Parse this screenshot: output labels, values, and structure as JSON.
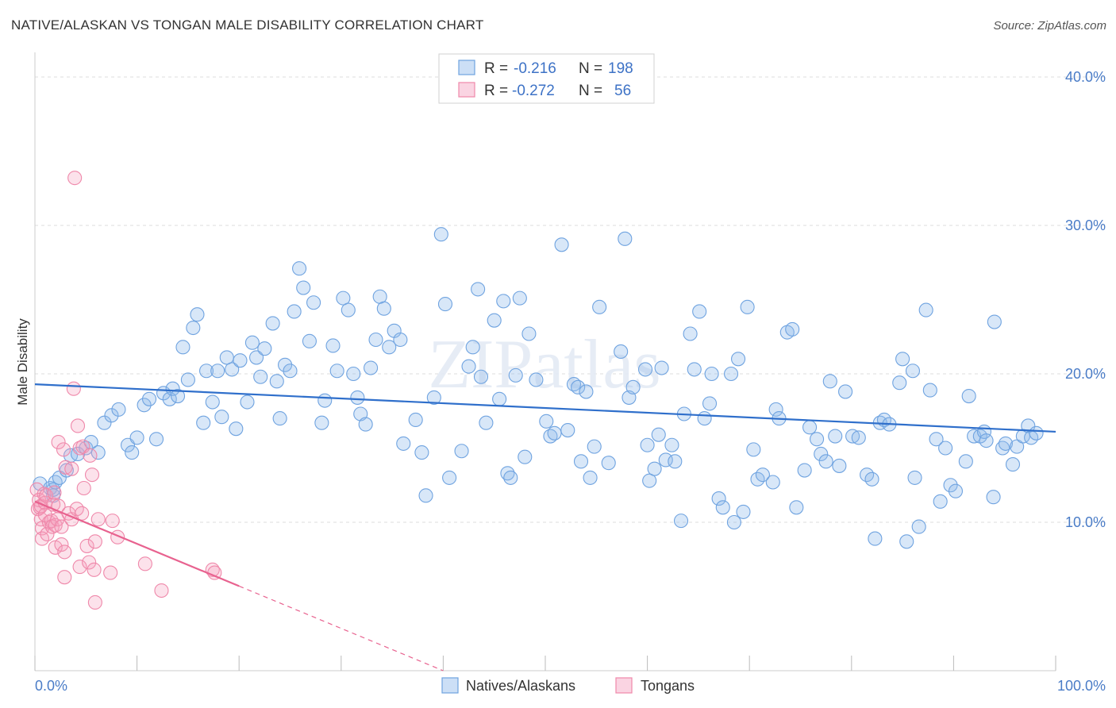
{
  "title": "NATIVE/ALASKAN VS TONGAN MALE DISABILITY CORRELATION CHART",
  "source": "Source: ZipAtlas.com",
  "watermark": "ZIPatlas",
  "colors": {
    "blue": "#6fa3e0",
    "blue_fill": "rgba(143,185,236,0.35)",
    "blue_line": "#2f6fcb",
    "pink": "#ef88aa",
    "pink_fill": "rgba(244,160,190,0.30)",
    "pink_line": "#e8628f",
    "grid": "#dddddd",
    "tick_text": "#4a7cc7"
  },
  "legend": {
    "r_label": "R =",
    "n_label": "N =",
    "rows": [
      {
        "r": "-0.216",
        "n": "198"
      },
      {
        "r": "-0.272",
        "n": "56"
      }
    ]
  },
  "chart_data": {
    "type": "scatter",
    "title": "NATIVE/ALASKAN VS TONGAN MALE DISABILITY CORRELATION CHART",
    "xlabel": "",
    "ylabel": "Male Disability",
    "x_unit": "%",
    "xlim": [
      0,
      100
    ],
    "ylim": [
      0,
      40
    ],
    "x_tick_labels": [
      "0.0%",
      "100.0%"
    ],
    "y_ticks": [
      10,
      20,
      30,
      40
    ],
    "y_tick_labels": [
      "10.0%",
      "20.0%",
      "30.0%",
      "40.0%"
    ],
    "grid": true,
    "legend_position": "top-center",
    "series": [
      {
        "name": "Natives/Alaskans",
        "trend": {
          "x": [
            0,
            100
          ],
          "y": [
            19.3,
            16.1
          ]
        },
        "points": [
          [
            0.5,
            12.6
          ],
          [
            1.5,
            12.3
          ],
          [
            1.8,
            11.8
          ],
          [
            1.8,
            12.2
          ],
          [
            2.0,
            12.7
          ],
          [
            2.4,
            13.0
          ],
          [
            3.1,
            13.5
          ],
          [
            3.5,
            14.5
          ],
          [
            4.2,
            14.6
          ],
          [
            5.0,
            15.0
          ],
          [
            5.5,
            15.4
          ],
          [
            6.2,
            14.7
          ],
          [
            6.8,
            16.7
          ],
          [
            7.5,
            17.2
          ],
          [
            8.2,
            17.6
          ],
          [
            9.1,
            15.2
          ],
          [
            9.5,
            14.7
          ],
          [
            10.0,
            15.7
          ],
          [
            10.7,
            17.9
          ],
          [
            11.2,
            18.3
          ],
          [
            11.9,
            15.6
          ],
          [
            12.6,
            18.7
          ],
          [
            13.2,
            18.3
          ],
          [
            13.5,
            19.0
          ],
          [
            14.0,
            18.5
          ],
          [
            14.5,
            21.8
          ],
          [
            15.0,
            19.6
          ],
          [
            15.5,
            23.1
          ],
          [
            15.9,
            24.0
          ],
          [
            16.5,
            16.7
          ],
          [
            16.8,
            20.2
          ],
          [
            17.4,
            18.1
          ],
          [
            17.9,
            20.2
          ],
          [
            18.3,
            17.1
          ],
          [
            18.8,
            21.1
          ],
          [
            19.3,
            20.3
          ],
          [
            19.7,
            16.3
          ],
          [
            20.1,
            20.9
          ],
          [
            20.8,
            18.1
          ],
          [
            21.3,
            22.1
          ],
          [
            21.7,
            21.1
          ],
          [
            22.1,
            19.8
          ],
          [
            22.5,
            21.7
          ],
          [
            23.3,
            23.4
          ],
          [
            23.7,
            19.5
          ],
          [
            24.0,
            17.0
          ],
          [
            24.5,
            20.6
          ],
          [
            25.0,
            20.2
          ],
          [
            25.4,
            24.2
          ],
          [
            25.9,
            27.1
          ],
          [
            26.3,
            25.8
          ],
          [
            26.9,
            22.2
          ],
          [
            27.3,
            24.8
          ],
          [
            28.1,
            16.7
          ],
          [
            28.4,
            18.2
          ],
          [
            29.2,
            21.9
          ],
          [
            29.6,
            20.2
          ],
          [
            30.2,
            25.1
          ],
          [
            30.7,
            24.3
          ],
          [
            31.2,
            20.0
          ],
          [
            31.6,
            18.4
          ],
          [
            31.9,
            17.3
          ],
          [
            32.4,
            16.6
          ],
          [
            32.9,
            20.4
          ],
          [
            33.4,
            22.3
          ],
          [
            33.8,
            25.2
          ],
          [
            34.2,
            24.4
          ],
          [
            34.7,
            21.8
          ],
          [
            35.2,
            22.9
          ],
          [
            35.8,
            22.3
          ],
          [
            36.1,
            15.3
          ],
          [
            37.3,
            16.9
          ],
          [
            37.9,
            14.7
          ],
          [
            38.3,
            11.8
          ],
          [
            39.1,
            18.4
          ],
          [
            39.8,
            29.4
          ],
          [
            40.2,
            24.7
          ],
          [
            40.6,
            13.0
          ],
          [
            41.8,
            14.8
          ],
          [
            42.5,
            20.5
          ],
          [
            42.9,
            21.8
          ],
          [
            43.4,
            25.7
          ],
          [
            43.7,
            19.8
          ],
          [
            44.2,
            16.7
          ],
          [
            45.0,
            23.6
          ],
          [
            45.5,
            18.3
          ],
          [
            45.9,
            24.9
          ],
          [
            46.3,
            13.3
          ],
          [
            46.6,
            13.0
          ],
          [
            47.1,
            19.9
          ],
          [
            47.5,
            25.1
          ],
          [
            48.0,
            14.4
          ],
          [
            48.4,
            22.7
          ],
          [
            49.1,
            19.6
          ],
          [
            50.1,
            16.8
          ],
          [
            50.5,
            15.8
          ],
          [
            50.9,
            16.0
          ],
          [
            51.6,
            28.7
          ],
          [
            52.2,
            16.2
          ],
          [
            52.8,
            19.3
          ],
          [
            53.2,
            19.1
          ],
          [
            53.5,
            14.1
          ],
          [
            54.0,
            18.8
          ],
          [
            54.4,
            13.0
          ],
          [
            54.8,
            15.1
          ],
          [
            55.3,
            24.5
          ],
          [
            56.2,
            14.0
          ],
          [
            57.4,
            21.5
          ],
          [
            57.8,
            29.1
          ],
          [
            58.2,
            18.4
          ],
          [
            58.6,
            19.1
          ],
          [
            59.8,
            20.3
          ],
          [
            60.0,
            15.2
          ],
          [
            60.2,
            12.8
          ],
          [
            60.7,
            13.6
          ],
          [
            61.1,
            15.9
          ],
          [
            61.4,
            20.4
          ],
          [
            61.8,
            14.2
          ],
          [
            62.4,
            15.2
          ],
          [
            62.7,
            14.1
          ],
          [
            63.3,
            10.1
          ],
          [
            63.6,
            17.3
          ],
          [
            64.2,
            22.7
          ],
          [
            64.6,
            20.3
          ],
          [
            65.1,
            24.2
          ],
          [
            65.6,
            17.0
          ],
          [
            66.1,
            18.0
          ],
          [
            66.3,
            20.0
          ],
          [
            67.0,
            11.6
          ],
          [
            67.4,
            11.0
          ],
          [
            68.2,
            20.0
          ],
          [
            68.5,
            10.0
          ],
          [
            68.9,
            21.0
          ],
          [
            69.4,
            10.7
          ],
          [
            69.8,
            24.5
          ],
          [
            70.4,
            14.9
          ],
          [
            70.8,
            12.9
          ],
          [
            71.3,
            13.2
          ],
          [
            72.3,
            12.7
          ],
          [
            72.6,
            17.6
          ],
          [
            72.9,
            17.0
          ],
          [
            73.7,
            22.8
          ],
          [
            74.2,
            23.0
          ],
          [
            74.6,
            11.0
          ],
          [
            75.4,
            13.5
          ],
          [
            75.9,
            16.4
          ],
          [
            76.6,
            15.6
          ],
          [
            77.0,
            14.6
          ],
          [
            77.5,
            14.1
          ],
          [
            77.9,
            19.5
          ],
          [
            78.4,
            15.8
          ],
          [
            78.8,
            13.8
          ],
          [
            79.4,
            18.8
          ],
          [
            80.1,
            15.8
          ],
          [
            80.7,
            15.7
          ],
          [
            81.5,
            13.2
          ],
          [
            82.0,
            12.9
          ],
          [
            82.3,
            8.9
          ],
          [
            82.8,
            16.7
          ],
          [
            83.2,
            16.9
          ],
          [
            83.7,
            16.6
          ],
          [
            84.7,
            19.4
          ],
          [
            85.0,
            21.0
          ],
          [
            85.4,
            8.7
          ],
          [
            86.0,
            20.2
          ],
          [
            86.2,
            13.0
          ],
          [
            86.6,
            9.7
          ],
          [
            87.3,
            24.3
          ],
          [
            87.7,
            18.9
          ],
          [
            88.3,
            15.6
          ],
          [
            88.7,
            11.4
          ],
          [
            89.2,
            15.0
          ],
          [
            89.7,
            12.5
          ],
          [
            90.2,
            12.1
          ],
          [
            91.2,
            14.1
          ],
          [
            91.5,
            18.5
          ],
          [
            92.0,
            15.8
          ],
          [
            92.6,
            15.8
          ],
          [
            93.0,
            16.1
          ],
          [
            93.2,
            15.5
          ],
          [
            93.9,
            11.7
          ],
          [
            94.0,
            23.5
          ],
          [
            94.8,
            15.0
          ],
          [
            95.1,
            15.3
          ],
          [
            95.8,
            13.9
          ],
          [
            96.2,
            15.1
          ],
          [
            96.8,
            15.8
          ],
          [
            97.3,
            16.5
          ],
          [
            97.6,
            15.7
          ],
          [
            98.1,
            16.0
          ]
        ]
      },
      {
        "name": "Tongans",
        "trend": {
          "x": [
            0,
            20
          ],
          "y": [
            11.4,
            5.7
          ]
        },
        "trend_extension": {
          "x": [
            20,
            40
          ],
          "y": [
            5.7,
            0
          ]
        },
        "points": [
          [
            0.2,
            12.2
          ],
          [
            0.3,
            10.9
          ],
          [
            0.4,
            11.5
          ],
          [
            0.5,
            11.0
          ],
          [
            0.6,
            10.2
          ],
          [
            0.6,
            11.1
          ],
          [
            0.7,
            9.6
          ],
          [
            0.7,
            8.9
          ],
          [
            0.9,
            11.9
          ],
          [
            1.0,
            11.3
          ],
          [
            1.0,
            10.5
          ],
          [
            1.1,
            11.8
          ],
          [
            1.2,
            9.2
          ],
          [
            1.4,
            10.0
          ],
          [
            1.6,
            10.1
          ],
          [
            1.7,
            9.7
          ],
          [
            1.8,
            11.2
          ],
          [
            1.9,
            12.0
          ],
          [
            2.0,
            9.8
          ],
          [
            2.0,
            8.3
          ],
          [
            2.2,
            10.2
          ],
          [
            2.3,
            15.4
          ],
          [
            2.3,
            11.1
          ],
          [
            2.6,
            9.7
          ],
          [
            2.6,
            8.5
          ],
          [
            2.9,
            8.0
          ],
          [
            2.8,
            14.9
          ],
          [
            2.9,
            6.3
          ],
          [
            3.0,
            13.7
          ],
          [
            3.3,
            10.6
          ],
          [
            3.6,
            10.2
          ],
          [
            3.6,
            13.6
          ],
          [
            3.8,
            19.0
          ],
          [
            3.9,
            33.2
          ],
          [
            4.1,
            10.9
          ],
          [
            4.2,
            16.5
          ],
          [
            4.4,
            15.0
          ],
          [
            4.4,
            7.0
          ],
          [
            4.6,
            10.6
          ],
          [
            4.7,
            15.1
          ],
          [
            4.8,
            12.3
          ],
          [
            5.1,
            8.4
          ],
          [
            5.3,
            7.3
          ],
          [
            5.4,
            14.5
          ],
          [
            5.6,
            13.2
          ],
          [
            5.8,
            6.8
          ],
          [
            5.9,
            8.7
          ],
          [
            5.9,
            4.6
          ],
          [
            6.2,
            10.2
          ],
          [
            7.4,
            6.6
          ],
          [
            7.6,
            10.1
          ],
          [
            8.1,
            9.0
          ],
          [
            10.8,
            7.2
          ],
          [
            12.4,
            5.4
          ],
          [
            17.4,
            6.8
          ],
          [
            17.6,
            6.6
          ]
        ]
      }
    ]
  },
  "bottom_legend": [
    "Natives/Alaskans",
    "Tongans"
  ]
}
